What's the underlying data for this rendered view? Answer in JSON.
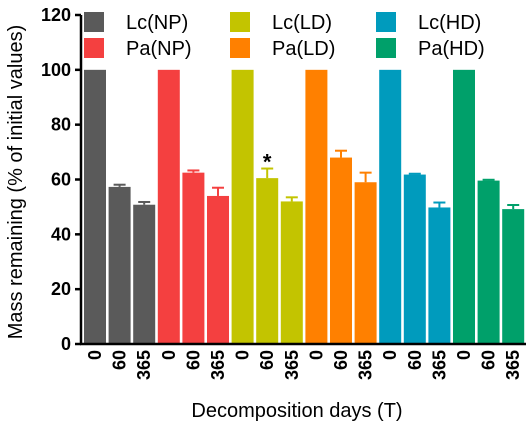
{
  "chart_data": {
    "type": "bar",
    "xlabel": "Decomposition days (T)",
    "ylabel": "Mass remaining (% of initial values)",
    "ylim": [
      0,
      120
    ],
    "yticks": [
      "0",
      "20",
      "40",
      "60",
      "80",
      "100",
      "120"
    ],
    "grid": false,
    "legend_position": "top",
    "annotation": {
      "text": "*",
      "series": "Lc(LD)",
      "category": "60"
    },
    "series": [
      {
        "name": "Lc(NP)",
        "color": "#5a5a5a",
        "categories": [
          "0",
          "60",
          "365"
        ],
        "values": [
          100,
          57.3,
          50.8
        ],
        "errors": [
          0,
          0.8,
          1.0
        ]
      },
      {
        "name": "Pa(NP)",
        "color": "#f44040",
        "categories": [
          "0",
          "60",
          "365"
        ],
        "values": [
          100,
          62.5,
          54.0
        ],
        "errors": [
          0,
          0.8,
          3.0
        ]
      },
      {
        "name": "Lc(LD)",
        "color": "#c3c400",
        "categories": [
          "0",
          "60",
          "365"
        ],
        "values": [
          100,
          60.5,
          52.0
        ],
        "errors": [
          0,
          3.5,
          1.5
        ]
      },
      {
        "name": "Pa(LD)",
        "color": "#ff8000",
        "categories": [
          "0",
          "60",
          "365"
        ],
        "values": [
          100,
          68.0,
          59.0
        ],
        "errors": [
          0,
          2.5,
          3.5
        ]
      },
      {
        "name": "Lc(HD)",
        "color": "#009bbd",
        "categories": [
          "0",
          "60",
          "365"
        ],
        "values": [
          100,
          61.8,
          49.8
        ],
        "errors": [
          0,
          0.3,
          1.8
        ]
      },
      {
        "name": "Pa(HD)",
        "color": "#00a06a",
        "categories": [
          "0",
          "60",
          "365"
        ],
        "values": [
          100,
          59.6,
          49.2
        ],
        "errors": [
          0,
          0.3,
          1.5
        ]
      }
    ]
  }
}
